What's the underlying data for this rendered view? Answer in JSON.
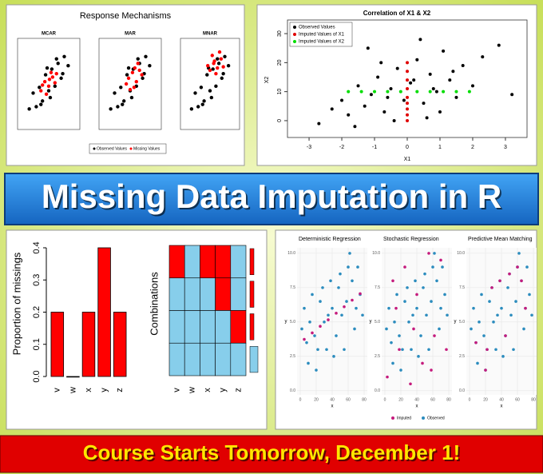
{
  "banner": {
    "title": "Missing Data Imputation in R",
    "footer": "Course Starts Tomorrow, December 1!"
  },
  "chart_data": [
    {
      "type": "scatter-panels",
      "title": "Response Mechanisms",
      "xlim": [
        -4,
        4
      ],
      "ylim": [
        -4,
        4
      ],
      "legend": [
        {
          "name": "Observed Values",
          "color": "#000000"
        },
        {
          "name": "Missing Values",
          "color": "#ff0000"
        }
      ],
      "observed": {
        "x": [
          -2.5,
          -2,
          -1.6,
          -1.2,
          -0.8,
          -0.4,
          0,
          0.4,
          0.8,
          1.2,
          1.6,
          2,
          2.5,
          -1,
          1,
          0.2,
          -0.2,
          1.8
        ],
        "y": [
          -2.2,
          -0.8,
          -2,
          -0.3,
          -1.5,
          0.8,
          -0.6,
          1.3,
          -0.2,
          1.8,
          0.5,
          2.4,
          1.6,
          -1.8,
          2.2,
          -1.2,
          1.4,
          0.9
        ]
      },
      "panels": [
        {
          "title": "MCAR",
          "missing": {
            "x": [
              -1,
              -0.5,
              0,
              0.5,
              1,
              -0.3,
              0.3,
              0.8,
              -0.8,
              0.1
            ],
            "y": [
              -0.6,
              0.2,
              -0.2,
              0.6,
              0.9,
              -0.9,
              1,
              0.1,
              -0.1,
              0.4
            ]
          }
        },
        {
          "title": "MAR",
          "missing": {
            "x": [
              -0.2,
              0.3,
              0.8,
              1.2,
              0.5,
              1.5,
              0,
              1,
              0.6,
              -0.5
            ],
            "y": [
              0.5,
              1,
              0.2,
              1.2,
              -0.3,
              0.8,
              -0.5,
              1.8,
              1.4,
              0
            ]
          }
        },
        {
          "title": "MNAR",
          "missing": {
            "x": [
              0,
              0.5,
              1,
              1.5,
              0.3,
              0.8,
              1.3,
              -0.3,
              0.6,
              1.8
            ],
            "y": [
              1.2,
              1.8,
              1.4,
              2.2,
              2.5,
              0.9,
              2.8,
              1.6,
              2,
              1.5
            ]
          }
        }
      ]
    },
    {
      "type": "scatter",
      "title": "Correlation of X1 & X2",
      "xlabel": "X1",
      "ylabel": "X2",
      "xlim": [
        -3.66,
        3.66
      ],
      "ylim": [
        -5.8,
        34.7
      ],
      "xticks": [
        -3,
        -2,
        -1,
        0,
        1,
        2,
        3
      ],
      "yticks": [
        0,
        10,
        20,
        30
      ],
      "legend_position": "top-left",
      "series": [
        {
          "name": "Observed Values",
          "color": "#000000",
          "x": [
            -2.7,
            -2.3,
            -2,
            -1.8,
            -1.5,
            -1.3,
            -1.1,
            -0.9,
            -0.7,
            -0.5,
            -0.3,
            -0.1,
            0.1,
            0.3,
            0.5,
            0.7,
            0.9,
            1.1,
            1.3,
            1.5,
            1.7,
            2,
            2.3,
            2.8,
            3.2,
            -1.6,
            -0.8,
            -0.4,
            0.4,
            0.6,
            1,
            1.4,
            -1.2,
            0.2,
            0.8,
            -0.6
          ],
          "y": [
            -1,
            4,
            7,
            2,
            12,
            5,
            9,
            15,
            3,
            11,
            18,
            7,
            13,
            21,
            6,
            16,
            10,
            24,
            14,
            8,
            19,
            12,
            22,
            26,
            9,
            -2,
            20,
            0,
            28,
            1,
            3,
            17,
            25,
            14,
            11,
            8
          ]
        },
        {
          "name": "Imputed Values of X1",
          "color": "#e00000",
          "x": [
            0,
            0,
            0,
            0,
            0,
            0,
            0,
            0,
            0
          ],
          "y": [
            0,
            2,
            4,
            6,
            8,
            11,
            14,
            17,
            20
          ]
        },
        {
          "name": "Imputed Values of X2",
          "color": "#00dd00",
          "x": [
            -1.8,
            -1.4,
            -1,
            -0.6,
            -0.2,
            0.3,
            0.7,
            1.1,
            1.5,
            1.9
          ],
          "y": [
            10,
            10,
            10,
            10,
            10,
            10,
            10,
            10,
            10,
            10
          ]
        }
      ]
    },
    {
      "type": "bar",
      "categories": [
        "v",
        "w",
        "x",
        "y",
        "z"
      ],
      "values": [
        0.2,
        0,
        0.2,
        0.4,
        0.2
      ],
      "color": "#ff0000",
      "ylabel": "Proportion of missings",
      "ylim": [
        0,
        0.4
      ],
      "yticks": [
        {
          "value": 0,
          "label": "0.0"
        },
        {
          "value": 0.1,
          "label": "0.1"
        },
        {
          "value": 0.2,
          "label": "0.2"
        },
        {
          "value": 0.3,
          "label": "0.3"
        },
        {
          "value": 0.4,
          "label": "0.4"
        }
      ]
    },
    {
      "type": "heatmap",
      "ylabel": "Combinations",
      "categories": [
        "v",
        "w",
        "x",
        "y",
        "z"
      ],
      "matrix": [
        [
          1,
          0,
          1,
          1,
          0
        ],
        [
          0,
          0,
          0,
          1,
          0
        ],
        [
          0,
          0,
          0,
          0,
          1
        ],
        [
          0,
          0,
          0,
          0,
          0
        ]
      ],
      "colors": [
        "#87ceeb",
        "#ff0000"
      ],
      "row_proportions": [
        0.2,
        0.2,
        0.2,
        0.4
      ]
    },
    {
      "type": "scatter-panels",
      "xlabel": "x",
      "ylabel": "y",
      "xlim": [
        -4,
        84
      ],
      "ylim": [
        -0.3,
        10.4
      ],
      "xticks": [
        0,
        20,
        40,
        60,
        80
      ],
      "yticks": [
        {
          "value": 0,
          "label": "0.0"
        },
        {
          "value": 2.5,
          "label": "2.5"
        },
        {
          "value": 5,
          "label": "5.0"
        },
        {
          "value": 7.5,
          "label": "7.5"
        },
        {
          "value": 10,
          "label": "10.0"
        }
      ],
      "legend": [
        {
          "name": "Imputed",
          "color": "#c51b7d"
        },
        {
          "name": "Observed",
          "color": "#2b8cbe"
        }
      ],
      "observed": {
        "x": [
          2,
          5,
          8,
          10,
          12,
          15,
          18,
          20,
          22,
          25,
          28,
          30,
          33,
          35,
          38,
          40,
          42,
          45,
          48,
          50,
          52,
          55,
          58,
          60,
          62,
          65,
          68,
          70,
          72,
          75,
          78
        ],
        "y": [
          4.5,
          6,
          3.5,
          2,
          5,
          7,
          4,
          1.5,
          3,
          6.5,
          7.5,
          5,
          3,
          5.5,
          8,
          6,
          2.5,
          4,
          7.5,
          8.5,
          5.5,
          3,
          6.5,
          9,
          10,
          8,
          4.5,
          6,
          9,
          7,
          5.5
        ]
      },
      "panels": [
        {
          "title": "Deterministic Regression",
          "imputed": {
            "x": [
              5,
              15,
              25,
              35,
              45,
              55,
              65,
              75
            ],
            "y": [
              3.74,
              4.21,
              4.69,
              5.16,
              5.64,
              6.11,
              6.59,
              7.06
            ]
          }
        },
        {
          "title": "Stochastic Regression",
          "imputed": {
            "x": [
              3,
              10,
              18,
              25,
              32,
              40,
              47,
              55,
              62,
              70,
              77,
              14,
              36,
              58
            ],
            "y": [
              1,
              8,
              3,
              9,
              0.5,
              7,
              2,
              10,
              4,
              9.5,
              3,
              6,
              4.5,
              1.5
            ]
          }
        },
        {
          "title": "Predictive Mean Matching",
          "imputed": {
            "x": [
              8,
              20,
              28,
              38,
              50,
              60,
              70,
              22,
              45,
              65
            ],
            "y": [
              3.5,
              1.5,
              7.5,
              8,
              8.5,
              9,
              6,
              3,
              4,
              8
            ]
          }
        }
      ]
    }
  ]
}
